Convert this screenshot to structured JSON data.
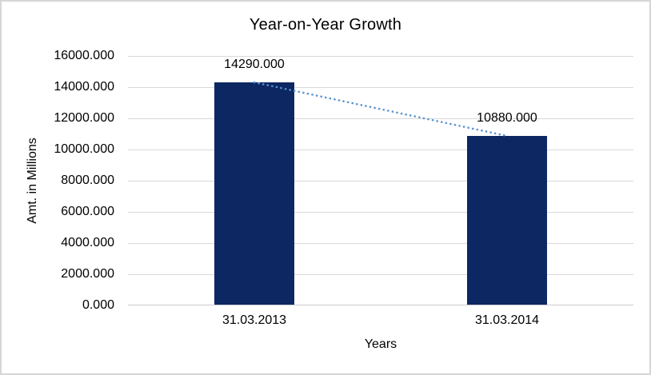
{
  "chart_data": {
    "type": "bar",
    "title": "Year-on-Year Growth",
    "xlabel": "Years",
    "ylabel": "Amt. in Millions",
    "categories": [
      "31.03.2013",
      "31.03.2014"
    ],
    "values": [
      14290,
      10880
    ],
    "data_labels": [
      "14290.000",
      "10880.000"
    ],
    "y_tick_labels": [
      "16000.000",
      "14000.000",
      "12000.000",
      "10000.000",
      "8000.000",
      "6000.000",
      "4000.000",
      "2000.000",
      "0.000"
    ],
    "ylim": [
      0,
      16000
    ],
    "y_step": 2000,
    "grid": true,
    "legend_position": "none",
    "bar_color": "#0d2763",
    "trendline_color": "#5b93d2",
    "trendline_style": "dotted",
    "gridline_color": "#d9d9d9"
  }
}
